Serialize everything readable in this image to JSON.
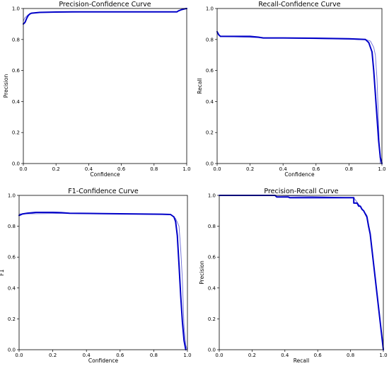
{
  "chart_data": [
    {
      "type": "line",
      "title": "Precision-Confidence Curve",
      "xlabel": "Confidence",
      "ylabel": "Precision",
      "xlim": [
        0,
        1
      ],
      "ylim": [
        0,
        1
      ],
      "xticks": [
        "0.0",
        "0.2",
        "0.4",
        "0.6",
        "0.8",
        "1.0"
      ],
      "yticks": [
        "0.0",
        "0.2",
        "0.4",
        "0.6",
        "0.8",
        "1.0"
      ],
      "grid": false,
      "series": [
        {
          "color": "#0000c8",
          "width": "bold",
          "x": [
            0.0,
            0.01,
            0.02,
            0.03,
            0.04,
            0.05,
            0.1,
            0.2,
            0.3,
            0.5,
            0.7,
            0.9,
            0.94,
            0.95,
            0.97,
            0.99,
            1.0
          ],
          "y": [
            0.9,
            0.91,
            0.935,
            0.955,
            0.965,
            0.97,
            0.975,
            0.977,
            0.978,
            0.978,
            0.978,
            0.978,
            0.978,
            0.985,
            0.993,
            0.998,
            1.0
          ]
        },
        {
          "color": "#6a6ad8",
          "width": "thin",
          "x": [
            0.0,
            0.01,
            0.02,
            0.03,
            0.05,
            0.1,
            0.5,
            0.9,
            0.94,
            0.96,
            0.98,
            1.0
          ],
          "y": [
            0.92,
            0.94,
            0.95,
            0.96,
            0.97,
            0.975,
            0.978,
            0.978,
            0.978,
            0.99,
            1.0,
            1.0
          ]
        }
      ]
    },
    {
      "type": "line",
      "title": "Recall-Confidence Curve",
      "xlabel": "Confidence",
      "ylabel": "Recall",
      "xlim": [
        0,
        1
      ],
      "ylim": [
        0,
        1
      ],
      "xticks": [
        "0.0",
        "0.2",
        "0.4",
        "0.6",
        "0.8",
        "1.0"
      ],
      "yticks": [
        "0.0",
        "0.2",
        "0.4",
        "0.6",
        "0.8",
        "1.0"
      ],
      "grid": false,
      "series": [
        {
          "color": "#0000c8",
          "width": "bold",
          "x": [
            0.0,
            0.01,
            0.02,
            0.05,
            0.1,
            0.2,
            0.25,
            0.28,
            0.3,
            0.4,
            0.6,
            0.8,
            0.9,
            0.92,
            0.94,
            0.95,
            0.96,
            0.97,
            0.98,
            0.99,
            1.0
          ],
          "y": [
            0.85,
            0.83,
            0.82,
            0.82,
            0.82,
            0.82,
            0.815,
            0.81,
            0.81,
            0.81,
            0.808,
            0.805,
            0.8,
            0.78,
            0.72,
            0.6,
            0.45,
            0.3,
            0.15,
            0.04,
            0.0
          ]
        },
        {
          "color": "#6a6ad8",
          "width": "thin",
          "x": [
            0.0,
            0.02,
            0.3,
            0.9,
            0.93,
            0.95,
            0.96,
            0.97,
            0.975,
            0.98,
            0.985,
            0.99
          ],
          "y": [
            0.84,
            0.82,
            0.81,
            0.8,
            0.79,
            0.75,
            0.7,
            0.55,
            0.4,
            0.25,
            0.1,
            0.0
          ]
        }
      ]
    },
    {
      "type": "line",
      "title": "F1-Confidence Curve",
      "xlabel": "Confidence",
      "ylabel": "F1",
      "xlim": [
        0,
        1
      ],
      "ylim": [
        0,
        1
      ],
      "xticks": [
        "0.0",
        "0.2",
        "0.4",
        "0.6",
        "0.8",
        "1.0"
      ],
      "yticks": [
        "0.0",
        "0.2",
        "0.4",
        "0.6",
        "0.8",
        "1.0"
      ],
      "grid": false,
      "series": [
        {
          "color": "#0000c8",
          "width": "bold",
          "x": [
            0.0,
            0.02,
            0.05,
            0.1,
            0.2,
            0.25,
            0.3,
            0.5,
            0.7,
            0.85,
            0.9,
            0.92,
            0.93,
            0.94,
            0.95,
            0.96,
            0.97,
            0.98,
            0.99
          ],
          "y": [
            0.87,
            0.88,
            0.885,
            0.89,
            0.89,
            0.888,
            0.884,
            0.882,
            0.88,
            0.878,
            0.876,
            0.86,
            0.83,
            0.74,
            0.55,
            0.35,
            0.18,
            0.06,
            0.0
          ]
        },
        {
          "color": "#6a6ad8",
          "width": "thin",
          "x": [
            0.0,
            0.3,
            0.9,
            0.93,
            0.95,
            0.96,
            0.97,
            0.975,
            0.98,
            0.99,
            1.0
          ],
          "y": [
            0.88,
            0.884,
            0.876,
            0.85,
            0.8,
            0.65,
            0.45,
            0.3,
            0.15,
            0.03,
            0.0
          ]
        }
      ]
    },
    {
      "type": "line",
      "title": "Precision-Recall Curve",
      "xlabel": "Recall",
      "ylabel": "Precision",
      "xlim": [
        0,
        1
      ],
      "ylim": [
        0,
        1
      ],
      "xticks": [
        "0.0",
        "0.2",
        "0.4",
        "0.6",
        "0.8",
        "1.0"
      ],
      "yticks": [
        "0.0",
        "0.2",
        "0.4",
        "0.6",
        "0.8",
        "1.0"
      ],
      "grid": false,
      "series": [
        {
          "color": "#0000c8",
          "width": "bold",
          "x": [
            0.0,
            0.34,
            0.35,
            0.42,
            0.43,
            0.6,
            0.82,
            0.82,
            0.84,
            0.85,
            0.86,
            0.87,
            0.88,
            0.89,
            0.9,
            0.91,
            0.92,
            1.0
          ],
          "y": [
            1.0,
            1.0,
            0.99,
            0.99,
            0.985,
            0.985,
            0.985,
            0.95,
            0.95,
            0.93,
            0.93,
            0.91,
            0.9,
            0.88,
            0.86,
            0.8,
            0.75,
            0.0
          ]
        },
        {
          "color": "#6a6ad8",
          "width": "thin",
          "x": [
            0.0,
            0.35,
            0.82,
            0.9,
            0.92,
            1.0
          ],
          "y": [
            1.0,
            1.0,
            0.985,
            0.87,
            0.76,
            0.0
          ]
        }
      ]
    }
  ]
}
